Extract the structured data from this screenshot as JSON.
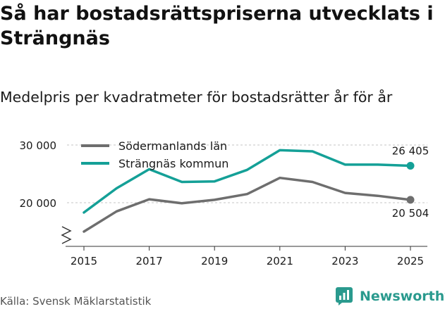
{
  "title": "Så har bostadsrättspriserna utvecklats i Strängnäs",
  "subtitle": "Medelpris per kvadratmeter för bostadsrätter år för år",
  "source": "Källa: Svensk Mäklarstatistik",
  "brand": "Newsworthy",
  "colors": {
    "sodermanland": "#6e6e6e",
    "strangnas": "#14a097",
    "grid": "#c4c4c4",
    "brand": "#2a9a8e"
  },
  "chart_data": {
    "type": "line",
    "title": "Så har bostadsrättspriserna utvecklats i Strängnäs",
    "subtitle": "Medelpris per kvadratmeter för bostadsrätter år för år",
    "x": [
      2015,
      2016,
      2017,
      2018,
      2019,
      2020,
      2021,
      2022,
      2023,
      2024,
      2025
    ],
    "x_ticks": [
      "2015",
      "2017",
      "2019",
      "2021",
      "2023",
      "2025"
    ],
    "y_ticks": [
      "20 000",
      "30 000"
    ],
    "ylim": [
      14000,
      31000
    ],
    "y_axis_break": true,
    "grid": true,
    "legend_position": "top-left",
    "series": [
      {
        "name": "Södermanlands län",
        "color": "#6e6e6e",
        "values": [
          15000,
          18500,
          20600,
          19900,
          20500,
          21500,
          24300,
          23600,
          21700,
          21200,
          20504
        ],
        "end_label": "20 504"
      },
      {
        "name": "Strängnäs kommun",
        "color": "#14a097",
        "values": [
          18300,
          22500,
          25800,
          23600,
          23700,
          25700,
          29100,
          28900,
          26600,
          26600,
          26405
        ],
        "end_label": "26 405"
      }
    ]
  }
}
